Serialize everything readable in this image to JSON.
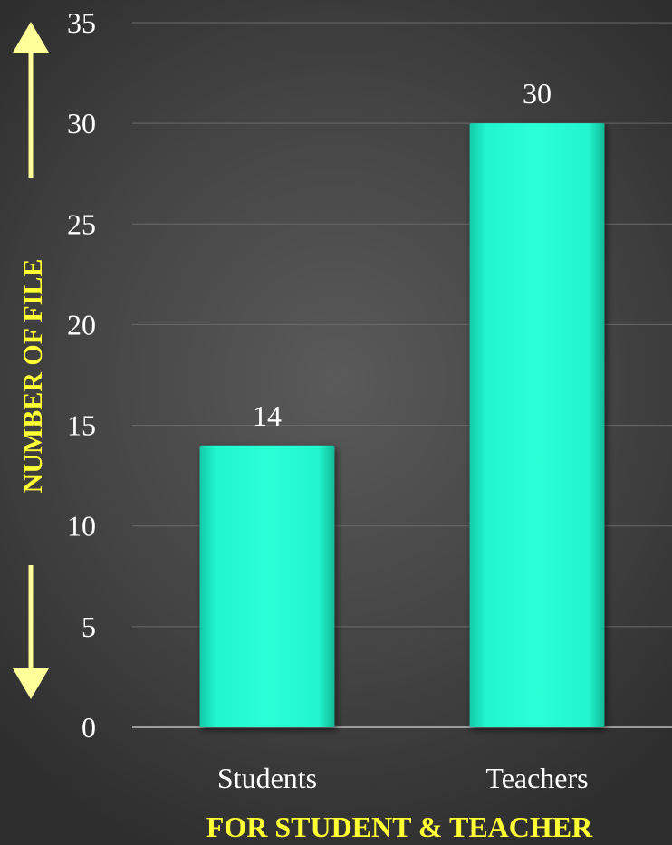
{
  "chart_data": {
    "type": "bar",
    "categories": [
      "Students",
      "Teachers"
    ],
    "values": [
      14,
      30
    ],
    "data_labels": [
      "14",
      "30"
    ],
    "xlabel": "FOR STUDENT & TEACHER",
    "ylabel": "NUMBER OF FILE",
    "ylim": [
      0,
      35
    ],
    "yticks": [
      0,
      5,
      10,
      15,
      20,
      25,
      30,
      35
    ],
    "grid": true,
    "legend": "none",
    "colors": {
      "bar": "#1ff7cd",
      "axis_title": "#ffff33",
      "text": "#ffffff",
      "background": "#4a4a4a"
    }
  }
}
